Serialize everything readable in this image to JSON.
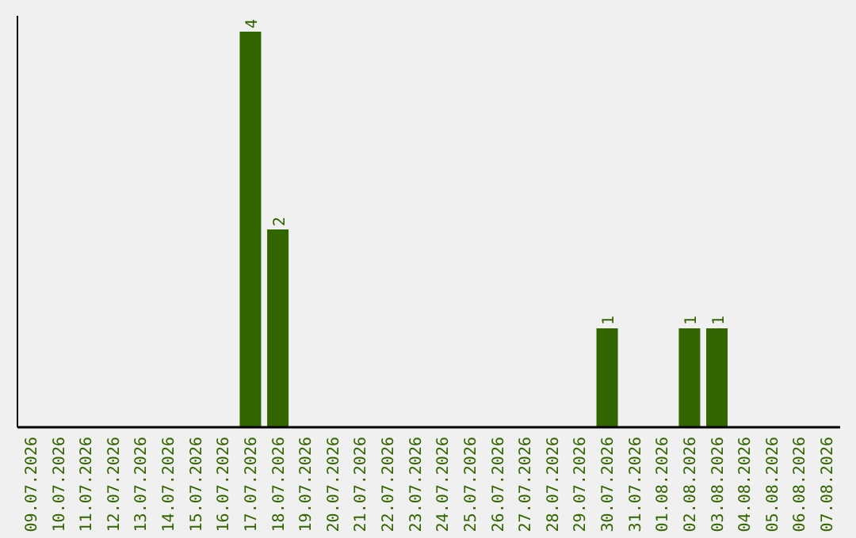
{
  "chart_data": {
    "type": "bar",
    "categories": [
      "09.07.2026",
      "10.07.2026",
      "11.07.2026",
      "12.07.2026",
      "13.07.2026",
      "14.07.2026",
      "15.07.2026",
      "16.07.2026",
      "17.07.2026",
      "18.07.2026",
      "19.07.2026",
      "20.07.2026",
      "21.07.2026",
      "22.07.2026",
      "23.07.2026",
      "24.07.2026",
      "25.07.2026",
      "26.07.2026",
      "27.07.2026",
      "28.07.2026",
      "29.07.2026",
      "30.07.2026",
      "31.07.2026",
      "01.08.2026",
      "02.08.2026",
      "03.08.2026",
      "04.08.2026",
      "05.08.2026",
      "06.08.2026",
      "07.08.2026"
    ],
    "values": [
      0,
      0,
      0,
      0,
      0,
      0,
      0,
      0,
      4,
      2,
      0,
      0,
      0,
      0,
      0,
      0,
      0,
      0,
      0,
      0,
      0,
      1,
      0,
      0,
      1,
      1,
      0,
      0,
      0,
      0
    ],
    "value_labels": [
      null,
      null,
      null,
      null,
      null,
      null,
      null,
      null,
      "4",
      "2",
      null,
      null,
      null,
      null,
      null,
      null,
      null,
      null,
      null,
      null,
      null,
      "1",
      null,
      null,
      "1",
      "1",
      null,
      null,
      null,
      null
    ],
    "color": "#336600",
    "tick_labels": "x"
  }
}
